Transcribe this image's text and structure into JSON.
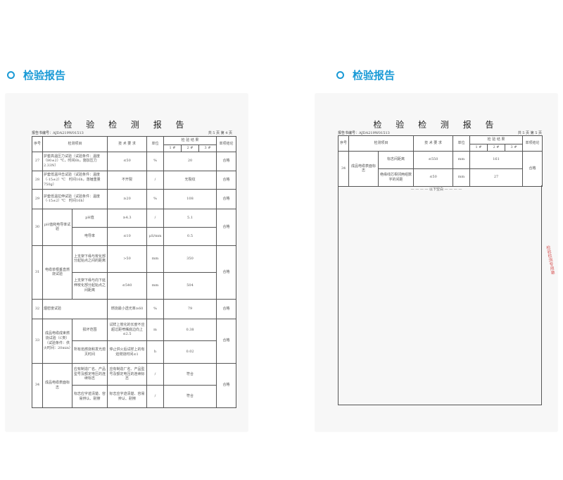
{
  "section_title": "检验报告",
  "accent_color": "#1a9ad6",
  "pages": [
    {
      "title": "检 验 检 测 报 告",
      "report_no": "报告书编号：AJDA219W01513",
      "page_info": "共 5 页 第 4 页"
    },
    {
      "title": "检 验 检 测 报 告",
      "report_no": "报告书编号：AJDA219W01513",
      "page_info": "共 5 页 第 5 页",
      "blank_note": "— — — — 以下空白 — — — —",
      "stamp": "检验检测专用章"
    }
  ],
  "headers": {
    "seq": "序号",
    "item": "检测项目",
    "tech": "技 术 要 求",
    "unit": "单位",
    "results": "检 验 结 果",
    "r1": "1 #",
    "r2": "2 #",
    "r3": "3 #",
    "conclusion": "单项结论"
  },
  "rows_p4": [
    {
      "seq": "27",
      "item": "护套高温压力试验（试验条件：温度（80±2）℃，时间6h，施加压力2.33N）",
      "tech": "≤50",
      "unit": "%",
      "result": "20",
      "conclusion": "合格"
    },
    {
      "seq": "28",
      "item": "护套低温冲击试验（试验条件：温度（-15±2）℃　时间16h，落锤重量750g）",
      "tech": "不开裂",
      "unit": "/",
      "result": "无裂纹",
      "conclusion": "合格"
    },
    {
      "seq": "29",
      "item": "护套低温拉伸试验（试验条件：温度（-15±2）℃　时间16h）",
      "tech": "≥20",
      "unit": "%",
      "result": "108",
      "conclusion": "合格"
    },
    {
      "seq": "30",
      "item": "pH值和电导率试验",
      "conclusion": "合格",
      "subs": [
        {
          "sub": "pH值",
          "tech": "≥4.3",
          "unit": "/",
          "result": "5.1"
        },
        {
          "sub": "电导率",
          "tech": "≤10",
          "unit": "μS/mm",
          "result": "0.5"
        }
      ]
    },
    {
      "seq": "31",
      "item": "电缆单根垂直燃烧试验",
      "conclusion": "合格",
      "subs": [
        {
          "sub": "上支架下缘与炭化部分起始点之间的距离",
          "tech": ">50",
          "unit": "mm",
          "result": "350"
        },
        {
          "sub": "上支架下缘与向下延伸炭化部分起始点之间距离",
          "tech": "≤540",
          "unit": "mm",
          "result": "504"
        }
      ]
    },
    {
      "seq": "32",
      "item": "烟密度试验",
      "tech": "燃烧最小透光率≥60",
      "unit": "%",
      "result": "79",
      "conclusion": "合格"
    },
    {
      "seq": "33",
      "item": "成品电缆成束燃烧试验（C类）（试验条件：供火时间：20min）",
      "conclusion": "合格",
      "subs": [
        {
          "sub": "损坏范围",
          "tech": "试样上炭化的长度不应超过距喷嘴底边向上≤2.5",
          "unit": "m",
          "result": "0.38"
        },
        {
          "sub": "所有焰燃烧和发光熄灭时间",
          "tech": "停止供火后试样上的有焰燃烧时间≤1",
          "unit": "h",
          "result": "0.02"
        }
      ]
    },
    {
      "seq": "34",
      "item": "成品电缆表面标志",
      "conclusion": "合格",
      "subs": [
        {
          "sub": "应有制造厂名、产品型号及额定电压的连续标志",
          "tech": "应有制造厂名、产品型号及额定电压的连续标志",
          "unit": "/",
          "result": "符合"
        },
        {
          "sub": "标志应字迹清楚、容易辨认、耐擦",
          "tech": "标志应字迹清楚、容易辨认、耐擦",
          "unit": "/",
          "result": "符合"
        }
      ]
    }
  ],
  "rows_p5": [
    {
      "seq": "34",
      "item": "成品电缆表面标志",
      "conclusion": "合格",
      "subs": [
        {
          "sub": "标志间距离",
          "tech": "≤550",
          "unit": "mm",
          "result": "161"
        },
        {
          "sub": "绝缘线芯相邻两组数字的间距",
          "tech": "≤50",
          "unit": "mm",
          "result": "27"
        }
      ]
    }
  ]
}
